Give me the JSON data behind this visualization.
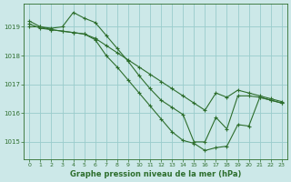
{
  "background_color": "#cce8e8",
  "grid_color": "#99cccc",
  "line_color": "#2d6e2d",
  "marker_color": "#2d6e2d",
  "xlabel": "Graphe pression niveau de la mer (hPa)",
  "xlim": [
    -0.5,
    23.5
  ],
  "ylim": [
    1014.4,
    1019.8
  ],
  "yticks": [
    1015,
    1016,
    1017,
    1018,
    1019
  ],
  "xticks": [
    0,
    1,
    2,
    3,
    4,
    5,
    6,
    7,
    8,
    9,
    10,
    11,
    12,
    13,
    14,
    15,
    16,
    17,
    18,
    19,
    20,
    21,
    22,
    23
  ],
  "series": [
    {
      "x": [
        0,
        1,
        2,
        3,
        4,
        5,
        6,
        7,
        8,
        9,
        10,
        11,
        12,
        13,
        14,
        15,
        16,
        17,
        18,
        19,
        20,
        21,
        22,
        23
      ],
      "y": [
        1019.2,
        1019.0,
        1018.9,
        1018.85,
        1018.8,
        1018.75,
        1018.55,
        1018.0,
        1017.6,
        1017.15,
        1016.7,
        1016.25,
        1015.8,
        1015.35,
        1015.05,
        1014.95,
        1014.7,
        1014.8,
        1014.85,
        1015.6,
        1015.55,
        1016.55,
        1016.45,
        1016.35
      ]
    },
    {
      "x": [
        0,
        1,
        2,
        3,
        4,
        5,
        6,
        7,
        8,
        9,
        10,
        11,
        12,
        13,
        14,
        15,
        16,
        17,
        18,
        19,
        20,
        21,
        22,
        23
      ],
      "y": [
        1019.1,
        1018.95,
        1018.9,
        1018.85,
        1018.8,
        1018.75,
        1018.6,
        1018.35,
        1018.1,
        1017.85,
        1017.6,
        1017.35,
        1017.1,
        1016.85,
        1016.6,
        1016.35,
        1016.1,
        1016.7,
        1016.55,
        1016.8,
        1016.7,
        1016.6,
        1016.5,
        1016.4
      ]
    },
    {
      "x": [
        0,
        1,
        2,
        3,
        4,
        5,
        6,
        7,
        8,
        9,
        10,
        11,
        12,
        13,
        14,
        15,
        16,
        17,
        18,
        19,
        20,
        21,
        22,
        23
      ],
      "y": [
        1019.0,
        1019.0,
        1018.95,
        1019.0,
        1019.5,
        1019.3,
        1019.15,
        1018.7,
        1018.25,
        1017.8,
        1017.3,
        1016.85,
        1016.45,
        1016.2,
        1015.95,
        1015.0,
        1015.0,
        1015.85,
        1015.45,
        1016.6,
        1016.6,
        1016.55,
        1016.45,
        1016.35
      ]
    }
  ]
}
